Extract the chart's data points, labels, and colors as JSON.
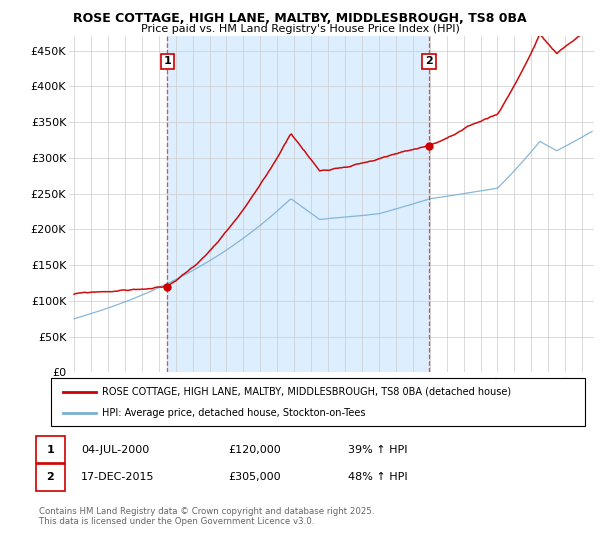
{
  "title1": "ROSE COTTAGE, HIGH LANE, MALTBY, MIDDLESBROUGH, TS8 0BA",
  "title2": "Price paid vs. HM Land Registry's House Price Index (HPI)",
  "ylabel_ticks": [
    "£0",
    "£50K",
    "£100K",
    "£150K",
    "£200K",
    "£250K",
    "£300K",
    "£350K",
    "£400K",
    "£450K"
  ],
  "ytick_vals": [
    0,
    50000,
    100000,
    150000,
    200000,
    250000,
    300000,
    350000,
    400000,
    450000
  ],
  "ylim": [
    0,
    470000
  ],
  "xlim_start": 1994.7,
  "xlim_end": 2025.7,
  "red_color": "#cc0000",
  "blue_color": "#7bafd4",
  "shade_color": "#ddeeff",
  "dashed_red": "#cc4444",
  "marker1_x": 2000.5,
  "marker2_x": 2015.95,
  "legend_label1": "ROSE COTTAGE, HIGH LANE, MALTBY, MIDDLESBROUGH, TS8 0BA (detached house)",
  "legend_label2": "HPI: Average price, detached house, Stockton-on-Tees",
  "table_row1": [
    "1",
    "04-JUL-2000",
    "£120,000",
    "39% ↑ HPI"
  ],
  "table_row2": [
    "2",
    "17-DEC-2015",
    "£305,000",
    "48% ↑ HPI"
  ],
  "footer": "Contains HM Land Registry data © Crown copyright and database right 2025.\nThis data is licensed under the Open Government Licence v3.0.",
  "bg_color": "#ffffff",
  "grid_color": "#cccccc"
}
